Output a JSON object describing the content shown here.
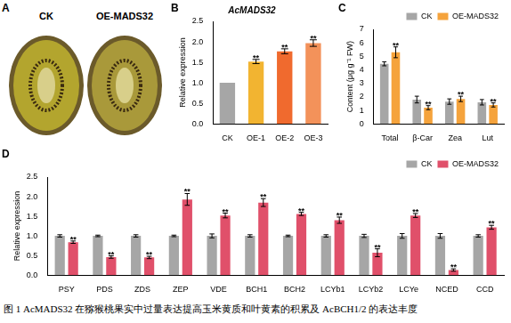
{
  "photo_panel": {
    "panel": "A",
    "labels": [
      "CK",
      "OE-MADS32"
    ]
  },
  "caption": "图 1 AcMADS32 在猕猴桃果实中过量表达提高玉米黄质和叶黄素的积累及 AcBCH1/2 的表达丰度",
  "chart_data": [
    {
      "panel": "B",
      "type": "bar",
      "title": "AcMADS32",
      "y_label": "Relative expression",
      "categories": [
        "CK",
        "OE-1",
        "OE-2",
        "OE-3"
      ],
      "values": [
        1.0,
        1.52,
        1.77,
        1.97
      ],
      "errors": [
        0.0,
        0.05,
        0.06,
        0.08
      ],
      "annotations": [
        null,
        "**",
        "**",
        "**"
      ],
      "colors": [
        "#a6a6a6",
        "#f2b431",
        "#f06a2e",
        "#f3925a"
      ],
      "ylim": [
        0,
        2.5
      ],
      "yticks": [
        {
          "value": 0,
          "label": "0.0"
        },
        {
          "value": 0.5,
          "label": "0.5"
        },
        {
          "value": 1,
          "label": "1.0"
        },
        {
          "value": 1.5,
          "label": "1.5"
        },
        {
          "value": 2,
          "label": "2.0"
        },
        {
          "value": 2.5,
          "label": "2.5"
        }
      ],
      "grid": false
    },
    {
      "panel": "C",
      "type": "bar",
      "y_label": "Content (μg g⁻¹ FW)",
      "categories": [
        "Total",
        "β-Car",
        "Zea",
        "Lut"
      ],
      "series": [
        {
          "name": "CK",
          "color": "#a6a6a6",
          "values": [
            4.45,
            1.8,
            1.65,
            1.6
          ],
          "errors": [
            0.15,
            0.25,
            0.2,
            0.2
          ],
          "annotations": [
            null,
            null,
            null,
            null
          ]
        },
        {
          "name": "OE-MADS32",
          "color": "#f5a33c",
          "values": [
            5.3,
            1.2,
            1.85,
            1.4
          ],
          "errors": [
            0.4,
            0.15,
            0.2,
            0.15
          ],
          "annotations": [
            "**",
            "**",
            "**",
            "**"
          ]
        }
      ],
      "ylim": [
        0,
        7
      ],
      "yticks": [
        0,
        1,
        2,
        3,
        4,
        5,
        6,
        7
      ],
      "legend": "top right",
      "grid": false
    },
    {
      "panel": "D",
      "type": "bar",
      "y_label": "Relative expression",
      "categories": [
        "PSY",
        "PDS",
        "ZDS",
        "ZEP",
        "VDE",
        "BCH1",
        "BCH2",
        "LCYb1",
        "LCYb2",
        "LCYe",
        "NCED",
        "CCD"
      ],
      "series": [
        {
          "name": "CK",
          "color": "#a6a6a6",
          "values": [
            1.0,
            1.0,
            1.0,
            1.0,
            1.0,
            1.0,
            1.0,
            1.0,
            1.0,
            1.0,
            1.0,
            1.0
          ],
          "errors": [
            0.03,
            0.02,
            0.03,
            0.02,
            0.05,
            0.03,
            0.02,
            0.03,
            0.04,
            0.06,
            0.06,
            0.03
          ],
          "annotations": [
            null,
            null,
            null,
            null,
            null,
            null,
            null,
            null,
            null,
            null,
            null,
            null
          ]
        },
        {
          "name": "OE-MADS32",
          "color": "#e0506a",
          "values": [
            0.84,
            0.46,
            0.45,
            1.93,
            1.52,
            1.85,
            1.56,
            1.4,
            0.57,
            1.52,
            0.13,
            1.22
          ],
          "errors": [
            0.03,
            0.03,
            0.03,
            0.15,
            0.06,
            0.1,
            0.04,
            0.08,
            0.1,
            0.05,
            0.03,
            0.05
          ],
          "annotations": [
            "**",
            "**",
            "**",
            "**",
            "**",
            "**",
            "**",
            "**",
            "**",
            "**",
            "**",
            "**"
          ]
        }
      ],
      "ylim": [
        0,
        2.5
      ],
      "yticks": [
        {
          "value": 0,
          "label": "0.0"
        },
        {
          "value": 0.5,
          "label": "0.5"
        },
        {
          "value": 1,
          "label": "1.0"
        },
        {
          "value": 1.5,
          "label": "1.5"
        },
        {
          "value": 2,
          "label": "2.0"
        },
        {
          "value": 2.5,
          "label": "2.5"
        }
      ],
      "legend": "top right",
      "grid": false
    }
  ]
}
